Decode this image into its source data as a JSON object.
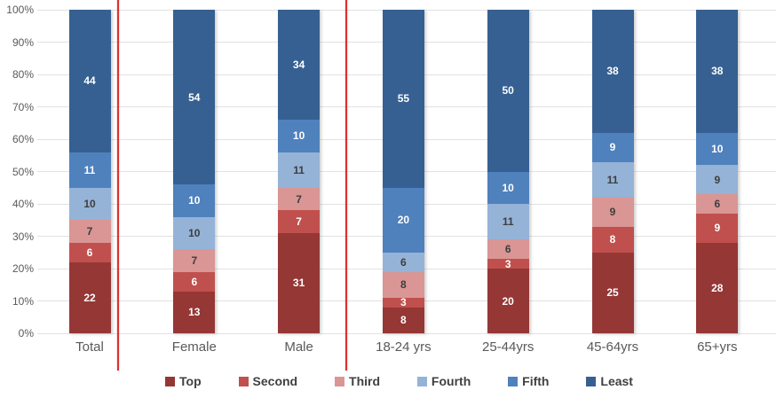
{
  "chart_data": {
    "type": "bar",
    "stacked": true,
    "orientation": "vertical",
    "title": "",
    "categories": [
      "Total",
      "Female",
      "Male",
      "18-24 yrs",
      "25-44yrs",
      "45-64yrs",
      "65+yrs"
    ],
    "series": [
      {
        "name": "Top",
        "color": "#953735",
        "label_color": "#ffffff",
        "values": [
          22,
          13,
          31,
          8,
          20,
          25,
          28
        ]
      },
      {
        "name": "Second",
        "color": "#c0504d",
        "label_color": "#ffffff",
        "values": [
          6,
          6,
          7,
          3,
          3,
          8,
          9
        ]
      },
      {
        "name": "Third",
        "color": "#d99694",
        "label_color": "#3f3f3f",
        "values": [
          7,
          7,
          7,
          8,
          6,
          9,
          6
        ]
      },
      {
        "name": "Fourth",
        "color": "#95b3d7",
        "label_color": "#3f3f3f",
        "values": [
          10,
          10,
          11,
          6,
          11,
          11,
          9
        ]
      },
      {
        "name": "Fifth",
        "color": "#4f81bd",
        "label_color": "#ffffff",
        "values": [
          11,
          10,
          10,
          20,
          10,
          9,
          10
        ]
      },
      {
        "name": "Least",
        "color": "#366092",
        "label_color": "#ffffff",
        "values": [
          44,
          54,
          34,
          55,
          50,
          38,
          38
        ]
      }
    ],
    "y_ticks": [
      "0%",
      "10%",
      "20%",
      "30%",
      "40%",
      "50%",
      "60%",
      "70%",
      "80%",
      "90%",
      "100%"
    ],
    "ylim": [
      0,
      100
    ],
    "grid": true,
    "legend_position": "bottom",
    "legend_labels": [
      "Top",
      "Second",
      "Third",
      "Fourth",
      "Fifth",
      "Least"
    ],
    "dividers_after_categories": [
      "Total",
      "Male"
    ],
    "divider_color": "#e0302e",
    "axis_label_color": "#595959",
    "gridline_color": "#e2e2e2"
  }
}
